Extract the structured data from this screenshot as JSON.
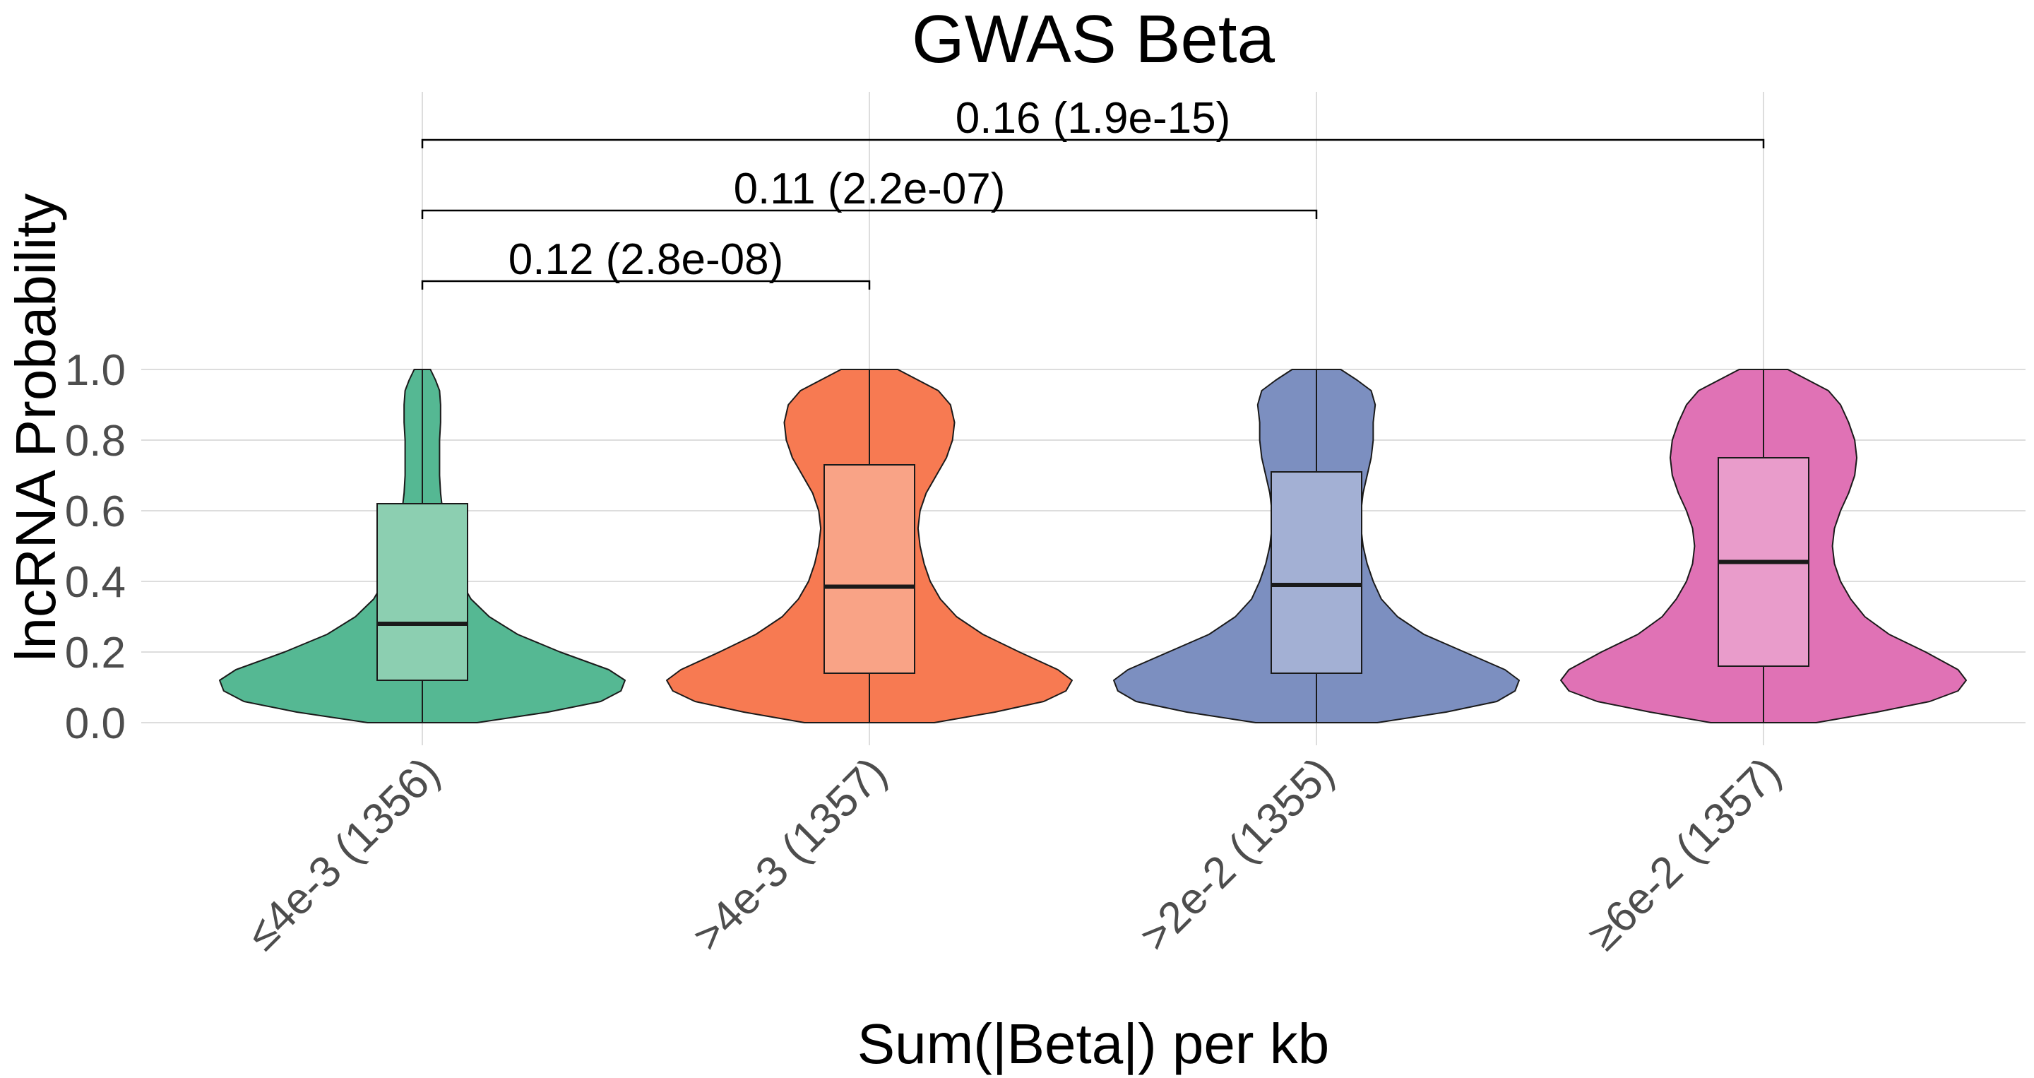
{
  "chart_data": {
    "type": "violin",
    "title": "GWAS Beta",
    "xlabel": "Sum(|Beta|) per kb",
    "ylabel": "lncRNA Probability",
    "ylim": [
      0,
      1
    ],
    "y_ticks": [
      "0.0",
      "0.2",
      "0.4",
      "0.6",
      "0.8",
      "1.0"
    ],
    "y_tick_values": [
      0.0,
      0.2,
      0.4,
      0.6,
      0.8,
      1.0
    ],
    "grid": true,
    "categories": [
      "≤4e-3 (1356)",
      ">4e-3 (1357)",
      ">2e-2 (1355)",
      "≥6e-2 (1357)"
    ],
    "series": [
      {
        "category": "≤4e-3 (1356)",
        "color": "#55b893",
        "box_color": "#8ccfb1",
        "box": {
          "min": 0.0,
          "q1": 0.12,
          "median": 0.28,
          "q3": 0.62,
          "max": 1.0
        },
        "density": [
          [
            0.0,
            0.27
          ],
          [
            0.03,
            0.62
          ],
          [
            0.06,
            0.88
          ],
          [
            0.09,
            0.98
          ],
          [
            0.12,
            1.0
          ],
          [
            0.15,
            0.92
          ],
          [
            0.2,
            0.68
          ],
          [
            0.25,
            0.47
          ],
          [
            0.3,
            0.33
          ],
          [
            0.35,
            0.24
          ],
          [
            0.4,
            0.19
          ],
          [
            0.45,
            0.16
          ],
          [
            0.5,
            0.135
          ],
          [
            0.55,
            0.115
          ],
          [
            0.6,
            0.1
          ],
          [
            0.65,
            0.09
          ],
          [
            0.7,
            0.085
          ],
          [
            0.75,
            0.085
          ],
          [
            0.8,
            0.085
          ],
          [
            0.85,
            0.09
          ],
          [
            0.9,
            0.09
          ],
          [
            0.94,
            0.085
          ],
          [
            0.97,
            0.065
          ],
          [
            1.0,
            0.04
          ]
        ]
      },
      {
        "category": ">4e-3 (1357)",
        "color": "#f77a52",
        "box_color": "#f9a386",
        "box": {
          "min": 0.0,
          "q1": 0.14,
          "median": 0.385,
          "q3": 0.73,
          "max": 1.0
        },
        "density": [
          [
            0.0,
            0.32
          ],
          [
            0.03,
            0.62
          ],
          [
            0.06,
            0.86
          ],
          [
            0.09,
            0.97
          ],
          [
            0.12,
            1.0
          ],
          [
            0.15,
            0.93
          ],
          [
            0.2,
            0.74
          ],
          [
            0.25,
            0.56
          ],
          [
            0.3,
            0.43
          ],
          [
            0.35,
            0.35
          ],
          [
            0.4,
            0.3
          ],
          [
            0.45,
            0.27
          ],
          [
            0.5,
            0.25
          ],
          [
            0.55,
            0.24
          ],
          [
            0.6,
            0.25
          ],
          [
            0.65,
            0.28
          ],
          [
            0.7,
            0.33
          ],
          [
            0.75,
            0.38
          ],
          [
            0.8,
            0.41
          ],
          [
            0.85,
            0.42
          ],
          [
            0.9,
            0.4
          ],
          [
            0.94,
            0.34
          ],
          [
            0.97,
            0.24
          ],
          [
            1.0,
            0.14
          ]
        ]
      },
      {
        "category": ">2e-2 (1355)",
        "color": "#7c8fc0",
        "box_color": "#a3b0d4",
        "box": {
          "min": 0.0,
          "q1": 0.14,
          "median": 0.39,
          "q3": 0.71,
          "max": 1.0
        },
        "density": [
          [
            0.0,
            0.3
          ],
          [
            0.03,
            0.64
          ],
          [
            0.06,
            0.89
          ],
          [
            0.09,
            0.98
          ],
          [
            0.12,
            1.0
          ],
          [
            0.15,
            0.93
          ],
          [
            0.2,
            0.73
          ],
          [
            0.25,
            0.53
          ],
          [
            0.3,
            0.4
          ],
          [
            0.35,
            0.32
          ],
          [
            0.4,
            0.28
          ],
          [
            0.45,
            0.25
          ],
          [
            0.5,
            0.23
          ],
          [
            0.55,
            0.22
          ],
          [
            0.6,
            0.22
          ],
          [
            0.65,
            0.23
          ],
          [
            0.7,
            0.25
          ],
          [
            0.75,
            0.27
          ],
          [
            0.8,
            0.28
          ],
          [
            0.85,
            0.28
          ],
          [
            0.9,
            0.29
          ],
          [
            0.94,
            0.27
          ],
          [
            0.97,
            0.2
          ],
          [
            1.0,
            0.12
          ]
        ]
      },
      {
        "category": "≥6e-2 (1357)",
        "color": "#e072b5",
        "box_color": "#e99ccb",
        "box": {
          "min": 0.0,
          "q1": 0.16,
          "median": 0.455,
          "q3": 0.75,
          "max": 1.0
        },
        "density": [
          [
            0.0,
            0.26
          ],
          [
            0.03,
            0.56
          ],
          [
            0.06,
            0.82
          ],
          [
            0.09,
            0.96
          ],
          [
            0.12,
            1.0
          ],
          [
            0.15,
            0.96
          ],
          [
            0.2,
            0.8
          ],
          [
            0.25,
            0.62
          ],
          [
            0.3,
            0.5
          ],
          [
            0.35,
            0.43
          ],
          [
            0.4,
            0.38
          ],
          [
            0.45,
            0.35
          ],
          [
            0.5,
            0.34
          ],
          [
            0.55,
            0.35
          ],
          [
            0.6,
            0.38
          ],
          [
            0.65,
            0.42
          ],
          [
            0.7,
            0.45
          ],
          [
            0.75,
            0.46
          ],
          [
            0.8,
            0.45
          ],
          [
            0.85,
            0.42
          ],
          [
            0.9,
            0.38
          ],
          [
            0.94,
            0.32
          ],
          [
            0.97,
            0.22
          ],
          [
            1.0,
            0.12
          ]
        ]
      }
    ],
    "comparisons": [
      {
        "from": 0,
        "to": 1,
        "label": "0.12 (2.8e-08)"
      },
      {
        "from": 0,
        "to": 2,
        "label": "0.11 (2.2e-07)"
      },
      {
        "from": 0,
        "to": 3,
        "label": "0.16 (1.9e-15)"
      }
    ]
  }
}
